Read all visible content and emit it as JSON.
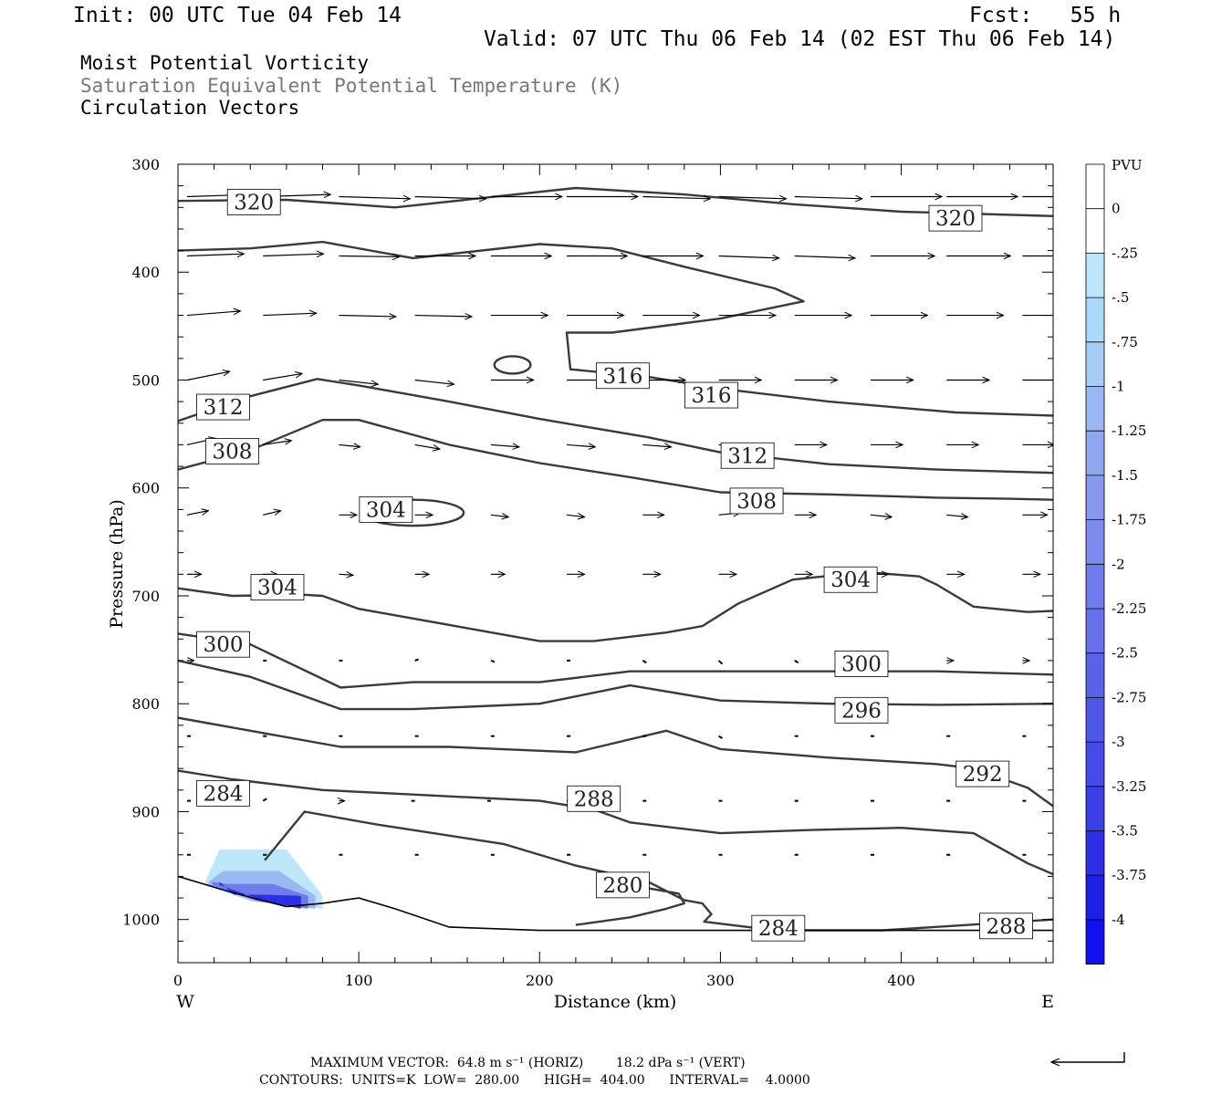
{
  "header": {
    "init": "Init: 00 UTC Tue 04 Feb 14",
    "fcst": "Fcst:   55 h",
    "valid": "Valid: 07 UTC Thu 06 Feb 14 (02 EST Thu 06 Feb 14)"
  },
  "titles": {
    "line1": "Moist Potential Vorticity",
    "line2": "Saturation Equivalent Potential Temperature (K)",
    "line3": "Circulation Vectors"
  },
  "footer": {
    "max_vector": "MAXIMUM VECTOR:  64.8 m s⁻¹ (HORIZ)        18.2 dPa s⁻¹ (VERT)",
    "contours": "CONTOURS:  UNITS=K  LOW=  280.00      HIGH=  404.00      INTERVAL=    4.0000"
  },
  "colors": {
    "contour": "#3a3a3a",
    "pv_fill": [
      "#ffffff",
      "#ffffff",
      "#bde6fb",
      "#a9daf8",
      "#a7cdf5",
      "#9bb8f3",
      "#8fa7f1",
      "#8699ef",
      "#7b8bee",
      "#6e7cec",
      "#6670ea",
      "#5a63e8",
      "#4f57e7",
      "#444be6",
      "#3a3ee5",
      "#2c2fe5",
      "#1f20e5",
      "#1010f0"
    ]
  },
  "chart_data": {
    "type": "contour",
    "xlabel": "Distance (km)",
    "ylabel": "Pressure (hPa)",
    "xlim": [
      0,
      484
    ],
    "ylim": [
      1040,
      300
    ],
    "x_ticks": [
      "0",
      "100",
      "200",
      "300",
      "400"
    ],
    "x_tick_values": [
      0,
      100,
      200,
      300,
      400
    ],
    "y_ticks": [
      "300",
      "400",
      "500",
      "600",
      "700",
      "800",
      "900",
      "1000"
    ],
    "y_tick_values": [
      300,
      400,
      500,
      600,
      700,
      800,
      900,
      1000
    ],
    "x_end_labels": {
      "left": "W",
      "right": "E"
    },
    "colorbar": {
      "unit": "PVU",
      "labels": [
        "0",
        "-.25",
        "-.5",
        "-.75",
        "-1",
        "-1.25",
        "-1.5",
        "-1.75",
        "-2",
        "-2.25",
        "-2.5",
        "-2.75",
        "-3",
        "-3.25",
        "-3.5",
        "-3.75",
        "-4"
      ]
    },
    "theta_es_contours": [
      {
        "level": 320,
        "label": "320",
        "points": [
          [
            0,
            334
          ],
          [
            60,
            333
          ],
          [
            120,
            340
          ],
          [
            220,
            322
          ],
          [
            280,
            328
          ],
          [
            340,
            337
          ],
          [
            400,
            344
          ],
          [
            484,
            348
          ]
        ]
      },
      {
        "level": 316,
        "label": "316",
        "points": [
          [
            0,
            380
          ],
          [
            40,
            378
          ],
          [
            80,
            372
          ],
          [
            130,
            387
          ],
          [
            200,
            374
          ],
          [
            240,
            378
          ],
          [
            280,
            395
          ],
          [
            330,
            415
          ],
          [
            346,
            427
          ],
          [
            300,
            443
          ],
          [
            240,
            456
          ],
          [
            215,
            456
          ],
          [
            217,
            490
          ],
          [
            260,
            497
          ],
          [
            300,
            508
          ],
          [
            360,
            520
          ],
          [
            430,
            530
          ],
          [
            484,
            533
          ]
        ]
      },
      {
        "level": 312,
        "label": "312",
        "points": [
          [
            0,
            538
          ],
          [
            40,
            515
          ],
          [
            77,
            499
          ],
          [
            100,
            505
          ],
          [
            150,
            520
          ],
          [
            200,
            536
          ],
          [
            260,
            553
          ],
          [
            300,
            567
          ],
          [
            360,
            578
          ],
          [
            420,
            583
          ],
          [
            484,
            586
          ]
        ]
      },
      {
        "level": 308,
        "label": "308",
        "points": [
          [
            0,
            583
          ],
          [
            40,
            565
          ],
          [
            80,
            537
          ],
          [
            100,
            537
          ],
          [
            150,
            560
          ],
          [
            200,
            577
          ],
          [
            250,
            590
          ],
          [
            300,
            604
          ],
          [
            360,
            606
          ],
          [
            420,
            609
          ],
          [
            460,
            610
          ],
          [
            484,
            611
          ]
        ]
      },
      {
        "level": 304,
        "label": "304",
        "points": [
          [
            0,
            693
          ],
          [
            30,
            700
          ],
          [
            70,
            699
          ],
          [
            80,
            700
          ],
          [
            100,
            712
          ],
          [
            160,
            730
          ],
          [
            200,
            742
          ],
          [
            230,
            742
          ],
          [
            270,
            734
          ],
          [
            290,
            728
          ],
          [
            310,
            707
          ],
          [
            340,
            685
          ],
          [
            380,
            678
          ],
          [
            410,
            682
          ],
          [
            420,
            690
          ],
          [
            440,
            710
          ],
          [
            470,
            715
          ],
          [
            484,
            714
          ]
        ]
      },
      {
        "level": 300,
        "label": "300",
        "points": [
          [
            0,
            735
          ],
          [
            40,
            745
          ],
          [
            90,
            785
          ],
          [
            130,
            780
          ],
          [
            200,
            780
          ],
          [
            250,
            770
          ],
          [
            300,
            770
          ],
          [
            360,
            770
          ],
          [
            420,
            770
          ],
          [
            484,
            773
          ]
        ]
      },
      {
        "level": 296,
        "label": "296",
        "points": [
          [
            0,
            760
          ],
          [
            40,
            775
          ],
          [
            90,
            805
          ],
          [
            130,
            805
          ],
          [
            200,
            800
          ],
          [
            250,
            783
          ],
          [
            300,
            797
          ],
          [
            360,
            800
          ],
          [
            420,
            801
          ],
          [
            484,
            800
          ]
        ]
      },
      {
        "level": 292,
        "label": "292",
        "points": [
          [
            0,
            813
          ],
          [
            40,
            825
          ],
          [
            90,
            840
          ],
          [
            150,
            840
          ],
          [
            220,
            845
          ],
          [
            270,
            825
          ],
          [
            300,
            842
          ],
          [
            360,
            850
          ],
          [
            420,
            856
          ],
          [
            440,
            860
          ],
          [
            470,
            878
          ],
          [
            484,
            895
          ]
        ]
      },
      {
        "level": 288,
        "label": "288",
        "points": [
          [
            0,
            862
          ],
          [
            30,
            870
          ],
          [
            80,
            880
          ],
          [
            140,
            885
          ],
          [
            200,
            890
          ],
          [
            230,
            898
          ],
          [
            250,
            910
          ],
          [
            300,
            920
          ],
          [
            350,
            917
          ],
          [
            400,
            915
          ],
          [
            440,
            920
          ],
          [
            470,
            948
          ],
          [
            484,
            958
          ]
        ]
      },
      {
        "level": 284,
        "label": "284",
        "points": [
          [
            48,
            945
          ],
          [
            70,
            900
          ],
          [
            110,
            912
          ],
          [
            180,
            930
          ],
          [
            220,
            950
          ],
          [
            260,
            965
          ],
          [
            280,
            982
          ],
          [
            290,
            985
          ],
          [
            295,
            995
          ],
          [
            291,
            1002
          ],
          [
            330,
            1010
          ],
          [
            390,
            1010
          ],
          [
            484,
            1000
          ]
        ]
      },
      {
        "level": 280,
        "label": "280",
        "points": [
          [
            220,
            1005
          ],
          [
            250,
            998
          ],
          [
            270,
            990
          ],
          [
            280,
            985
          ],
          [
            277,
            976
          ],
          [
            250,
            968
          ]
        ]
      }
    ],
    "vectors": {
      "grid_x_km": [
        0,
        42,
        84,
        126,
        168,
        210,
        252,
        294,
        336,
        378,
        420,
        462
      ],
      "rows_hpa": [
        330,
        385,
        440,
        500,
        560,
        625,
        680,
        760,
        830,
        890,
        940
      ],
      "u_scale": "relative",
      "rows": [
        [
          [
            0.9,
            0.05
          ],
          [
            0.95,
            0.05
          ],
          [
            1.0,
            -0.05
          ],
          [
            1.0,
            -0.05
          ],
          [
            1.0,
            0.0
          ],
          [
            1.0,
            0.0
          ],
          [
            0.95,
            -0.05
          ],
          [
            0.95,
            -0.05
          ],
          [
            0.95,
            -0.05
          ],
          [
            1.0,
            0.0
          ],
          [
            1.0,
            0.0
          ],
          [
            0.95,
            0.0
          ]
        ],
        [
          [
            0.8,
            0.05
          ],
          [
            0.85,
            0.05
          ],
          [
            0.85,
            -0.02
          ],
          [
            0.85,
            0.0
          ],
          [
            0.85,
            0.0
          ],
          [
            0.85,
            0.0
          ],
          [
            0.85,
            0.0
          ],
          [
            0.85,
            -0.05
          ],
          [
            0.85,
            -0.05
          ],
          [
            0.9,
            0.0
          ],
          [
            0.9,
            0.0
          ],
          [
            0.9,
            0.0
          ]
        ],
        [
          [
            0.75,
            0.1
          ],
          [
            0.75,
            0.05
          ],
          [
            0.8,
            -0.03
          ],
          [
            0.8,
            -0.03
          ],
          [
            0.8,
            0.0
          ],
          [
            0.8,
            0.0
          ],
          [
            0.8,
            0.0
          ],
          [
            0.8,
            0.0
          ],
          [
            0.8,
            0.0
          ],
          [
            0.8,
            0.0
          ],
          [
            0.8,
            0.0
          ],
          [
            0.8,
            0.0
          ]
        ],
        [
          [
            0.6,
            0.2
          ],
          [
            0.55,
            0.15
          ],
          [
            0.55,
            -0.1
          ],
          [
            0.55,
            -0.1
          ],
          [
            0.6,
            0.0
          ],
          [
            0.6,
            0.0
          ],
          [
            0.6,
            0.0
          ],
          [
            0.6,
            0.0
          ],
          [
            0.6,
            0.0
          ],
          [
            0.6,
            0.0
          ],
          [
            0.6,
            0.0
          ],
          [
            0.6,
            0.0
          ]
        ],
        [
          [
            0.4,
            0.15
          ],
          [
            0.4,
            0.1
          ],
          [
            0.3,
            -0.05
          ],
          [
            0.35,
            -0.1
          ],
          [
            0.4,
            -0.05
          ],
          [
            0.4,
            -0.05
          ],
          [
            0.4,
            -0.05
          ],
          [
            0.45,
            -0.05
          ],
          [
            0.45,
            0.0
          ],
          [
            0.45,
            0.0
          ],
          [
            0.45,
            0.0
          ],
          [
            0.45,
            0.0
          ]
        ],
        [
          [
            0.3,
            0.1
          ],
          [
            0.25,
            0.1
          ],
          [
            0.25,
            0.0
          ],
          [
            0.25,
            0.0
          ],
          [
            0.25,
            -0.05
          ],
          [
            0.25,
            -0.05
          ],
          [
            0.3,
            0.0
          ],
          [
            0.3,
            0.05
          ],
          [
            0.3,
            0.0
          ],
          [
            0.3,
            -0.05
          ],
          [
            0.3,
            -0.05
          ],
          [
            0.35,
            0.0
          ]
        ],
        [
          [
            0.2,
            0.0
          ],
          [
            0.2,
            0.0
          ],
          [
            0.2,
            -0.02
          ],
          [
            0.2,
            0.0
          ],
          [
            0.2,
            0.0
          ],
          [
            0.25,
            0.0
          ],
          [
            0.25,
            0.0
          ],
          [
            0.25,
            0.0
          ],
          [
            0.25,
            0.0
          ],
          [
            0.25,
            0.0
          ],
          [
            0.25,
            0.0
          ],
          [
            0.25,
            0.0
          ]
        ],
        [
          [
            0.1,
            0.0
          ],
          [
            0.05,
            0.0
          ],
          [
            0.05,
            0.0
          ],
          [
            0.05,
            0.03
          ],
          [
            0.03,
            -0.03
          ],
          [
            0.03,
            0.0
          ],
          [
            0.03,
            -0.05
          ],
          [
            0.05,
            -0.08
          ],
          [
            0.05,
            -0.05
          ],
          [
            0.1,
            0.0
          ],
          [
            0.1,
            0.0
          ],
          [
            0.1,
            0.0
          ]
        ],
        [
          [
            0.03,
            0.0
          ],
          [
            0.03,
            0.0
          ],
          [
            0.03,
            0.0
          ],
          [
            0.03,
            0.0
          ],
          [
            0.03,
            0.0
          ],
          [
            0.03,
            0.0
          ],
          [
            0.03,
            0.0
          ],
          [
            0.03,
            -0.05
          ],
          [
            0.05,
            0.0
          ],
          [
            0.05,
            0.0
          ],
          [
            0.05,
            0.0
          ],
          [
            0.05,
            0.0
          ]
        ],
        [
          [
            0.03,
            0.0
          ],
          [
            0.05,
            0.05
          ],
          [
            0.08,
            0.0
          ],
          [
            -0.05,
            0.0
          ],
          [
            -0.03,
            0.0
          ],
          [
            0.03,
            0.0
          ],
          [
            0.03,
            0.0
          ],
          [
            0.03,
            0.0
          ],
          [
            0.05,
            0.0
          ],
          [
            0.05,
            0.0
          ],
          [
            0.05,
            0.0
          ],
          [
            0.05,
            0.0
          ]
        ],
        [
          [
            0.03,
            0.0
          ],
          [
            0.03,
            0.0
          ],
          [
            0.03,
            0.0
          ],
          [
            0.03,
            0.0
          ],
          [
            0.03,
            0.0
          ],
          [
            0.03,
            0.0
          ],
          [
            0.03,
            0.0
          ],
          [
            0.03,
            0.0
          ],
          [
            0.03,
            0.0
          ],
          [
            0.03,
            0.0
          ],
          [
            0.03,
            0.0
          ],
          [
            0.03,
            0.0
          ]
        ]
      ]
    },
    "pv_negative_region": {
      "x_range_km": [
        15,
        80
      ],
      "p_range_hpa": [
        935,
        990
      ],
      "min_pvu": -4
    }
  }
}
